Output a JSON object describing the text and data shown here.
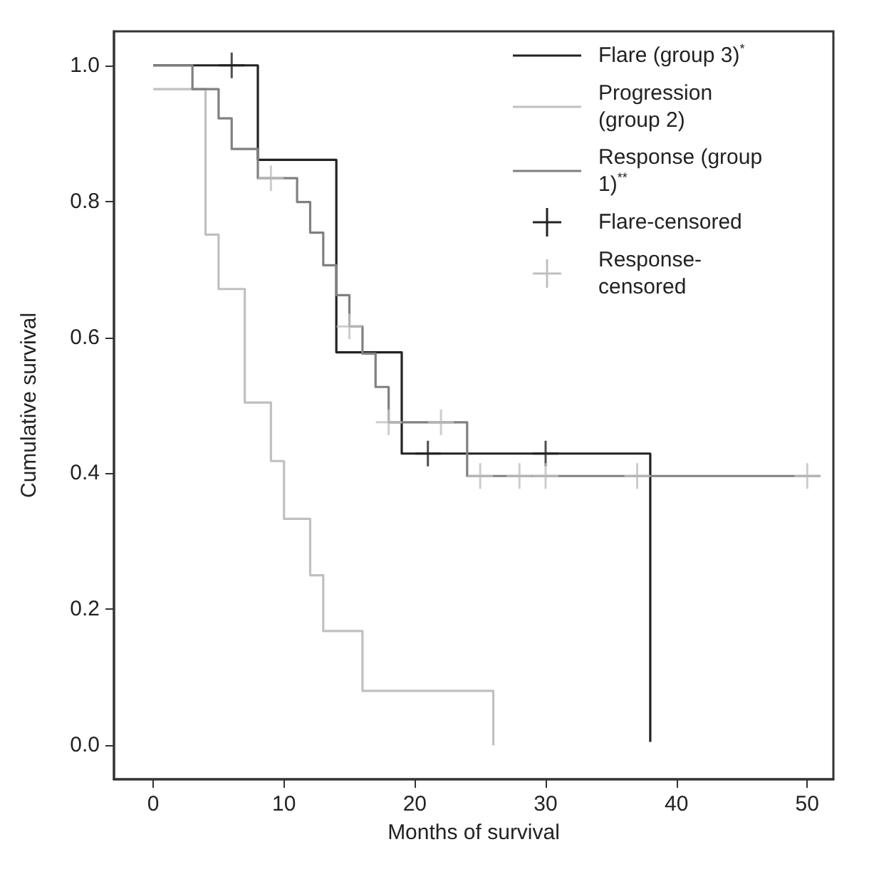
{
  "chart_data": {
    "type": "step",
    "xlabel": "Months of survival",
    "ylabel": "Cumulative survival",
    "xlim": [
      -3,
      52
    ],
    "xticks": [
      0,
      10,
      20,
      30,
      40,
      50
    ],
    "ylim": [
      -0.05,
      1.05
    ],
    "yticks": [
      {
        "value": 0,
        "label": "0.0"
      },
      {
        "value": 0.2,
        "label": "0.2"
      },
      {
        "value": 0.4,
        "label": "0.4"
      },
      {
        "value": 0.6,
        "label": "0.6"
      },
      {
        "value": 0.8,
        "label": "0.8"
      },
      {
        "value": 1,
        "label": "1.0"
      }
    ],
    "grid": false,
    "legend": "top right",
    "line_style": "solid",
    "series": [
      {
        "name": "Flare (group 3)$^{*}$",
        "color": "#222222",
        "marker": "none",
        "x": [
          0,
          8,
          14,
          19,
          38,
          38
        ],
        "values": [
          1.0,
          0.861,
          0.578,
          0.429,
          0.429,
          0.005
        ]
      },
      {
        "name": "Progression (group 2)",
        "color": "#c0c0c0",
        "marker": "none",
        "x": [
          0,
          4,
          5,
          7,
          9,
          10,
          12,
          13,
          16,
          26,
          26
        ],
        "values": [
          0.965,
          0.751,
          0.671,
          0.504,
          0.418,
          0.333,
          0.25,
          0.168,
          0.08,
          0.08,
          0
        ]
      },
      {
        "name": "Response (group 1)$^{**}$",
        "color": "#808080",
        "marker": "none",
        "x": [
          0,
          3,
          5,
          6,
          8,
          11,
          12,
          13,
          14,
          15,
          16,
          17,
          18,
          24,
          51
        ],
        "values": [
          1.0,
          0.965,
          0.922,
          0.877,
          0.834,
          0.799,
          0.754,
          0.706,
          0.662,
          0.616,
          0.576,
          0.527,
          0.475,
          0.396,
          0.396
        ]
      },
      {
        "name": "Flare-censored",
        "type": "scatter",
        "color": "#222222",
        "marker": "cross",
        "x": [
          6,
          21,
          30
        ],
        "values": [
          1.0,
          0.429,
          0.429
        ]
      },
      {
        "name": "Response-censored",
        "type": "scatter",
        "color": "#c0c0c0",
        "marker": "cross",
        "x": [
          9,
          15,
          18,
          22,
          25,
          28,
          30,
          37,
          50
        ],
        "values": [
          0.834,
          0.616,
          0.475,
          0.475,
          0.396,
          0.396,
          0.396,
          0.396,
          0.396
        ]
      }
    ]
  }
}
